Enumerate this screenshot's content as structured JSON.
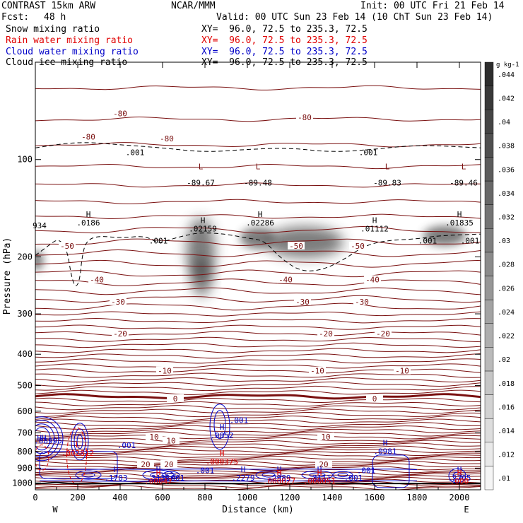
{
  "header": {
    "model": "CONTRAST 15km ARW",
    "center": "NCAR/MMM",
    "init": "Init: 00 UTC Fri 21 Feb 14",
    "fcst_label": "Fcst:",
    "fcst_value": "48 h",
    "valid": "Valid: 00 UTC Sun 23 Feb 14 (10 ChT Sun 23 Feb 14)"
  },
  "fields": [
    {
      "name": "Snow mixing ratio",
      "xy": "XY=  96.0, 72.5 to 235.3, 72.5",
      "color": "#000000"
    },
    {
      "name": "Rain water mixing ratio",
      "xy": "XY=  96.0, 72.5 to 235.3, 72.5",
      "color": "#e00000"
    },
    {
      "name": "Cloud water mixing ratio",
      "xy": "XY=  96.0, 72.5 to 235.3, 72.5",
      "color": "#0000c8"
    },
    {
      "name": "Cloud ice mixing ratio",
      "xy": "XY=  96.0, 72.5 to 235.3, 72.5",
      "color": "#000000"
    }
  ],
  "chart_data": {
    "type": "contour",
    "xlabel": "Distance (km)",
    "ylabel": "Pressure (hPa)",
    "xlim": [
      0,
      2100
    ],
    "ylim": [
      1050,
      50
    ],
    "y_scale": "log",
    "x_ticks": [
      0,
      200,
      400,
      600,
      800,
      1000,
      1200,
      1400,
      1600,
      1800,
      2000
    ],
    "y_ticks": [
      100,
      200,
      300,
      400,
      500,
      600,
      700,
      800,
      900,
      1000
    ],
    "x_ends": {
      "left": "W",
      "right": "E"
    },
    "temperature_isotherms": {
      "color": "#7a1010",
      "labels": [
        {
          "value": "-80",
          "x": 400,
          "p": 72
        },
        {
          "value": "-80",
          "x": 250,
          "p": 85
        },
        {
          "value": "-80",
          "x": 620,
          "p": 86
        },
        {
          "value": "-80",
          "x": 1270,
          "p": 74
        },
        {
          "value": "-50",
          "x": 150,
          "p": 185
        },
        {
          "value": "-50",
          "x": 1230,
          "p": 185
        },
        {
          "value": "-50",
          "x": 1520,
          "p": 185
        },
        {
          "value": "-40",
          "x": 290,
          "p": 235
        },
        {
          "value": "-40",
          "x": 1180,
          "p": 235
        },
        {
          "value": "-40",
          "x": 1590,
          "p": 235
        },
        {
          "value": "-30",
          "x": 390,
          "p": 275
        },
        {
          "value": "-30",
          "x": 1260,
          "p": 275
        },
        {
          "value": "-30",
          "x": 1540,
          "p": 275
        },
        {
          "value": "-20",
          "x": 400,
          "p": 345
        },
        {
          "value": "-20",
          "x": 1370,
          "p": 345
        },
        {
          "value": "-20",
          "x": 1640,
          "p": 345
        },
        {
          "value": "-10",
          "x": 610,
          "p": 450
        },
        {
          "value": "-10",
          "x": 1330,
          "p": 450
        },
        {
          "value": "-10",
          "x": 1730,
          "p": 450
        },
        {
          "value": "0",
          "x": 660,
          "p": 548
        },
        {
          "value": "0",
          "x": 1600,
          "p": 548
        },
        {
          "value": "10",
          "x": 560,
          "p": 720
        },
        {
          "value": "10",
          "x": 640,
          "p": 740
        },
        {
          "value": "10",
          "x": 1370,
          "p": 720
        },
        {
          "value": "20",
          "x": 520,
          "p": 875
        },
        {
          "value": "20",
          "x": 630,
          "p": 875
        },
        {
          "value": "20",
          "x": 1360,
          "p": 875
        }
      ]
    },
    "snow_shading": {
      "colorbar_label": "g kg-1",
      "colorbar_ticks": [
        ".01",
        ".012",
        ".014",
        ".016",
        ".018",
        ".02",
        ".022",
        ".024",
        ".026",
        ".028",
        ".03",
        ".032",
        ".034",
        ".036",
        ".038",
        ".04",
        ".042",
        ".044"
      ],
      "range": [
        0.01,
        0.046
      ]
    },
    "cloud_ice_maxima": [
      {
        "label": "L",
        "x": 780,
        "p": 105
      },
      {
        "label": "L",
        "x": 1050,
        "p": 105
      },
      {
        "label": "L",
        "x": 1660,
        "p": 105
      },
      {
        "label": "L",
        "x": 2020,
        "p": 105
      }
    ],
    "snow_maxima": [
      {
        "label": "H",
        "value": ".0186",
        "x": 250,
        "p": 155
      },
      {
        "label": "H",
        "value": ".02159",
        "x": 790,
        "p": 162
      },
      {
        "label": "H",
        "value": ".02286",
        "x": 1060,
        "p": 155
      },
      {
        "label": "H",
        "value": ".01112",
        "x": 1600,
        "p": 162
      },
      {
        "label": "H",
        "value": ".01835",
        "x": 2000,
        "p": 155
      }
    ],
    "snow_minima": [
      {
        "value": "-89.67",
        "x": 780,
        "p": 118
      },
      {
        "value": "-89.48",
        "x": 1050,
        "p": 118
      },
      {
        "value": "-89.83",
        "x": 1660,
        "p": 118
      },
      {
        "value": "-89.46",
        "x": 2020,
        "p": 118
      },
      {
        "value": "934",
        "x": 20,
        "p": 160
      }
    ],
    "cloud_water_maxima": [
      {
        "label": "H",
        "value": ".0852",
        "x": 880,
        "p": 705
      },
      {
        "label": "H",
        "value": ".0981",
        "x": 1650,
        "p": 790
      },
      {
        "label": "H",
        "value": ".1783",
        "x": 380,
        "p": 955
      },
      {
        "label": "H",
        "value": ".3136",
        "x": 580,
        "p": 955
      },
      {
        "label": "H",
        "value": ".2279",
        "x": 980,
        "p": 955
      },
      {
        "label": "H",
        "value": ".2989",
        "x": 1150,
        "p": 955
      },
      {
        "label": "H",
        "value": ".3111",
        "x": 1340,
        "p": 955
      },
      {
        "label": "H",
        "value": ".2705",
        "x": 2000,
        "p": 955
      }
    ],
    "rain_maxima": [
      {
        "label": "H",
        "value": ".000375",
        "x": 880,
        "p": 850
      },
      {
        "label": "L",
        "value": ".002812",
        "x": 200,
        "p": 800
      },
      {
        "label": "H",
        "value": ".00047",
        "x": 580,
        "p": 975
      },
      {
        "label": "H",
        "value": ".000027",
        "x": 1150,
        "p": 975
      },
      {
        "label": "H",
        "value": ".000051",
        "x": 1340,
        "p": 975
      },
      {
        "label": "H",
        "value": ".000",
        "x": 2000,
        "p": 975
      }
    ],
    "contour_labels": [
      {
        "value": ".001",
        "field": "cloud_ice",
        "x": 470,
        "p": 95
      },
      {
        "value": ".001",
        "field": "cloud_ice",
        "x": 1570,
        "p": 95
      },
      {
        "value": ".001",
        "field": "cloud_ice",
        "x": 580,
        "p": 178
      },
      {
        "value": ".001",
        "field": "cloud_ice",
        "x": 1850,
        "p": 178
      },
      {
        "value": ".001",
        "field": "cloud_ice",
        "x": 2050,
        "p": 178
      },
      {
        "value": ".001",
        "field": "cloud_water",
        "x": 960,
        "p": 640
      },
      {
        "value": ".001",
        "field": "cloud_water",
        "x": 430,
        "p": 765
      },
      {
        "value": ".001",
        "field": "cloud_water",
        "x": 800,
        "p": 915
      },
      {
        "value": ".001",
        "field": "cloud_water",
        "x": 1560,
        "p": 915
      },
      {
        "value": ".001",
        "field": "cloud_water",
        "x": 660,
        "p": 965
      },
      {
        "value": ".001",
        "field": "cloud_water",
        "x": 1500,
        "p": 965
      },
      {
        "value": "HH",
        "field": "cloud_water",
        "x": 30,
        "p": 725
      },
      {
        "value": ".08995",
        "field": "cloud_water",
        "x": 60,
        "p": 740
      }
    ]
  }
}
